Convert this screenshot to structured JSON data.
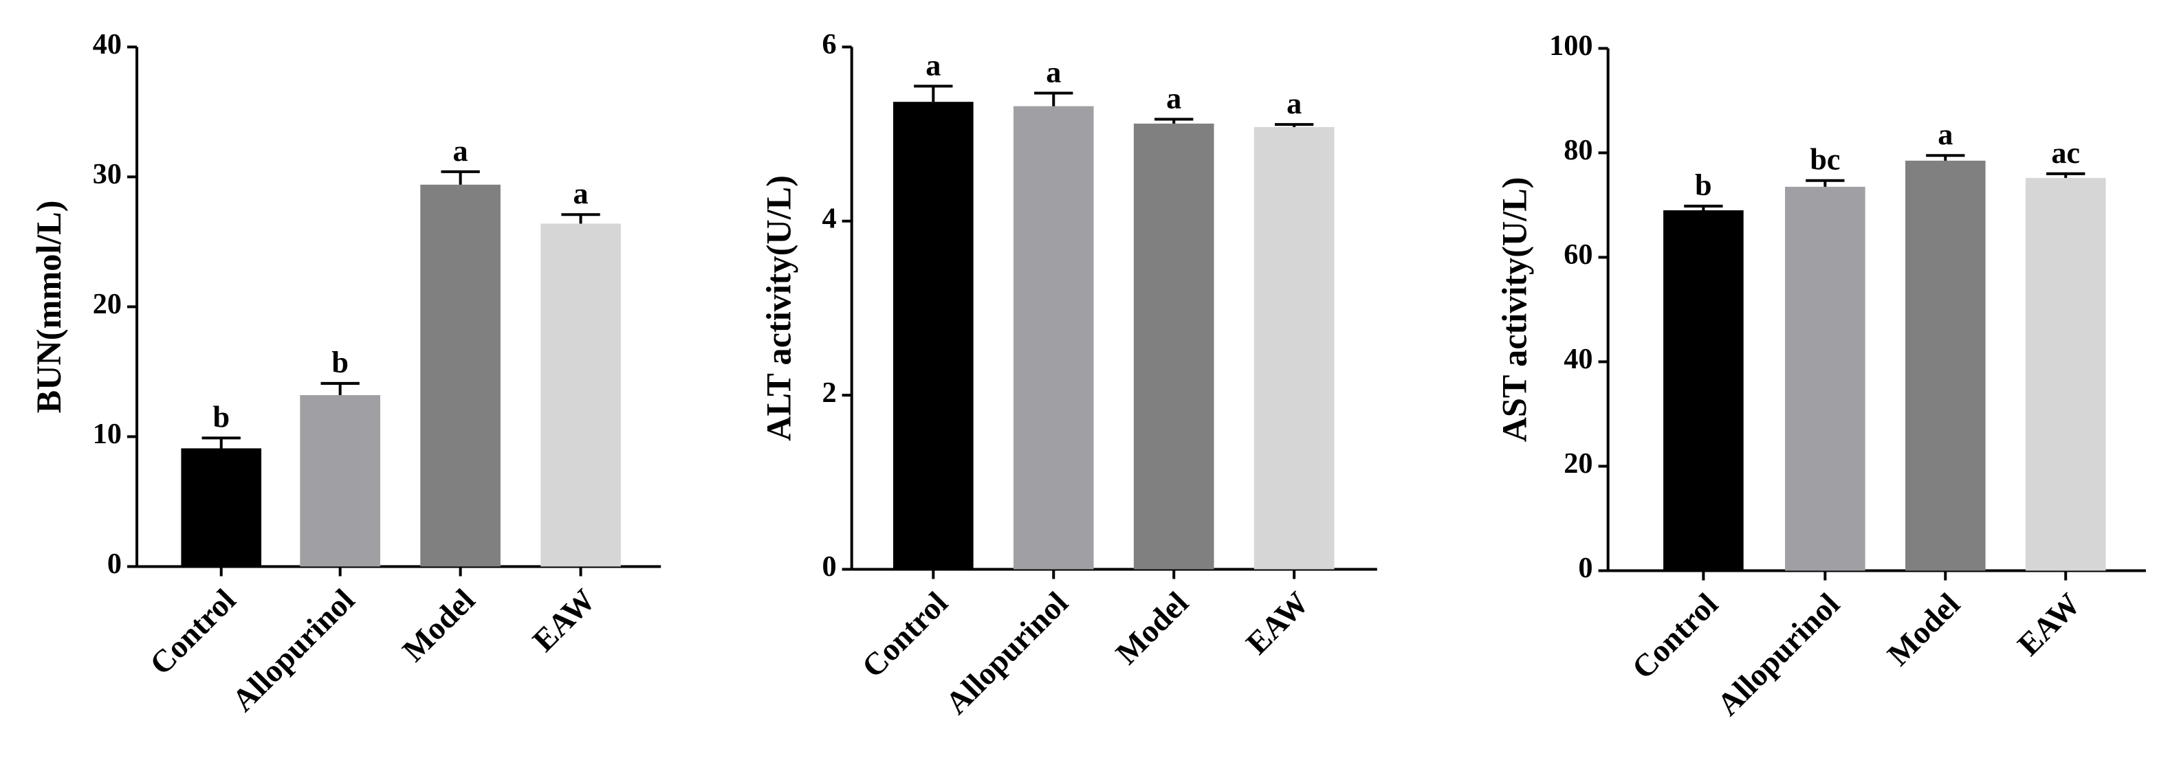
{
  "chart_data": [
    {
      "type": "bar",
      "ylabel": "BUN(mmol/L)",
      "categories": [
        "Control",
        "Allopurinol",
        "Model",
        "EAW"
      ],
      "values": [
        9.1,
        13.2,
        29.4,
        26.4
      ],
      "errors": [
        0.8,
        0.9,
        1.0,
        0.7
      ],
      "annotations": [
        "b",
        "b",
        "a",
        "a"
      ],
      "colors": [
        "#000000",
        "#a0a0a4",
        "#808080",
        "#d6d6d6"
      ],
      "ylim": [
        0,
        40
      ],
      "yticks": [
        0,
        10,
        20,
        30,
        40
      ]
    },
    {
      "type": "bar",
      "ylabel": "ALT activity(U/L)",
      "categories": [
        "Control",
        "Allopurinol",
        "Model",
        "EAW"
      ],
      "values": [
        5.37,
        5.32,
        5.12,
        5.08
      ],
      "errors": [
        0.18,
        0.15,
        0.05,
        0.03
      ],
      "annotations": [
        "a",
        "a",
        "a",
        "a"
      ],
      "colors": [
        "#000000",
        "#a0a0a4",
        "#808080",
        "#d6d6d6"
      ],
      "ylim": [
        0,
        6
      ],
      "yticks": [
        0,
        2,
        4,
        6
      ]
    },
    {
      "type": "bar",
      "ylabel": "AST activity(U/L)",
      "categories": [
        "Control",
        "Allopurinol",
        "Model",
        "EAW"
      ],
      "values": [
        69,
        73.5,
        78.5,
        75.2
      ],
      "errors": [
        0.8,
        1.2,
        1.0,
        0.8
      ],
      "annotations": [
        "b",
        "bc",
        "a",
        "ac"
      ],
      "colors": [
        "#000000",
        "#a0a0a4",
        "#808080",
        "#d6d6d6"
      ],
      "ylim": [
        0,
        100
      ],
      "yticks": [
        0,
        20,
        40,
        60,
        80,
        100
      ]
    }
  ]
}
